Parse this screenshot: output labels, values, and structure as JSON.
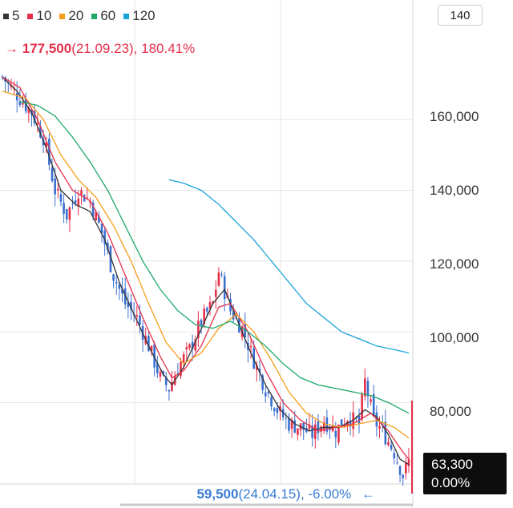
{
  "legend": [
    {
      "label": "5",
      "color": "#333333"
    },
    {
      "label": "10",
      "color": "#e5304b"
    },
    {
      "label": "20",
      "color": "#f59e1b"
    },
    {
      "label": "60",
      "color": "#1fa86a"
    },
    {
      "label": "120",
      "color": "#1aa3d9"
    }
  ],
  "period_button": "140",
  "max_marker": {
    "arrow": "→",
    "value": "177,500",
    "detail": "(21.09.23), 180.41%"
  },
  "min_marker": {
    "arrow": "←",
    "value": "59,500",
    "detail": "(24.04.15), -6.00%"
  },
  "current_price": {
    "price": "63,300",
    "change": "0.00%"
  },
  "colors": {
    "up": "#e5304b",
    "down": "#3a6fd0",
    "grid": "#e6e6e6"
  },
  "chart_data": {
    "type": "candlestick",
    "count": 140,
    "ylim": [
      57000,
      182000
    ],
    "yticks": [
      "160,000",
      "140,000",
      "120,000",
      "100,000",
      "80,000"
    ],
    "ytick_values": [
      160000,
      140000,
      120000,
      100000,
      80000
    ],
    "close_anchors": [
      [
        0,
        172000
      ],
      [
        6,
        166000
      ],
      [
        10,
        162000
      ],
      [
        14,
        155000
      ],
      [
        18,
        140000
      ],
      [
        22,
        133000
      ],
      [
        26,
        140000
      ],
      [
        30,
        137000
      ],
      [
        34,
        128000
      ],
      [
        38,
        116000
      ],
      [
        42,
        108000
      ],
      [
        46,
        104000
      ],
      [
        50,
        96000
      ],
      [
        54,
        87000
      ],
      [
        57,
        84000
      ],
      [
        60,
        90000
      ],
      [
        64,
        95000
      ],
      [
        68,
        103000
      ],
      [
        72,
        108000
      ],
      [
        74,
        117000
      ],
      [
        78,
        106000
      ],
      [
        82,
        101000
      ],
      [
        86,
        92000
      ],
      [
        90,
        84000
      ],
      [
        94,
        78000
      ],
      [
        98,
        74000
      ],
      [
        102,
        73000
      ],
      [
        106,
        71000
      ],
      [
        110,
        75000
      ],
      [
        114,
        72000
      ],
      [
        118,
        76000
      ],
      [
        122,
        74000
      ],
      [
        124,
        86000
      ],
      [
        127,
        75000
      ],
      [
        130,
        72000
      ],
      [
        134,
        66000
      ],
      [
        137,
        59500
      ],
      [
        139,
        63300
      ]
    ],
    "ma": {
      "5": [
        [
          0,
          172000
        ],
        [
          5,
          168000
        ],
        [
          10,
          162000
        ],
        [
          15,
          152000
        ],
        [
          20,
          140000
        ],
        [
          25,
          136000
        ],
        [
          30,
          134000
        ],
        [
          35,
          126000
        ],
        [
          40,
          114000
        ],
        [
          45,
          105000
        ],
        [
          50,
          96000
        ],
        [
          55,
          88000
        ],
        [
          58,
          85000
        ],
        [
          62,
          90000
        ],
        [
          67,
          99000
        ],
        [
          72,
          108000
        ],
        [
          76,
          112000
        ],
        [
          80,
          104000
        ],
        [
          85,
          94000
        ],
        [
          90,
          85000
        ],
        [
          95,
          78000
        ],
        [
          100,
          74000
        ],
        [
          105,
          72000
        ],
        [
          110,
          73000
        ],
        [
          115,
          73000
        ],
        [
          120,
          75000
        ],
        [
          124,
          78000
        ],
        [
          128,
          76000
        ],
        [
          132,
          71000
        ],
        [
          136,
          64000
        ],
        [
          139,
          62500
        ]
      ],
      "10": [
        [
          0,
          172000
        ],
        [
          6,
          169000
        ],
        [
          12,
          160000
        ],
        [
          18,
          148000
        ],
        [
          24,
          140000
        ],
        [
          30,
          137000
        ],
        [
          36,
          128000
        ],
        [
          42,
          116000
        ],
        [
          48,
          104000
        ],
        [
          54,
          93000
        ],
        [
          58,
          87000
        ],
        [
          62,
          89000
        ],
        [
          68,
          96000
        ],
        [
          74,
          107000
        ],
        [
          78,
          108000
        ],
        [
          84,
          100000
        ],
        [
          90,
          89000
        ],
        [
          96,
          80000
        ],
        [
          102,
          75000
        ],
        [
          108,
          72000
        ],
        [
          114,
          73000
        ],
        [
          120,
          74000
        ],
        [
          126,
          77000
        ],
        [
          132,
          72000
        ],
        [
          137,
          66000
        ],
        [
          139,
          64000
        ]
      ],
      "20": [
        [
          0,
          168000
        ],
        [
          8,
          166000
        ],
        [
          14,
          160000
        ],
        [
          20,
          150000
        ],
        [
          26,
          143000
        ],
        [
          32,
          138000
        ],
        [
          38,
          130000
        ],
        [
          44,
          120000
        ],
        [
          50,
          108000
        ],
        [
          56,
          97000
        ],
        [
          62,
          91000
        ],
        [
          68,
          94000
        ],
        [
          74,
          101000
        ],
        [
          80,
          105000
        ],
        [
          86,
          100000
        ],
        [
          92,
          92000
        ],
        [
          98,
          83000
        ],
        [
          104,
          77000
        ],
        [
          110,
          74000
        ],
        [
          116,
          73000
        ],
        [
          122,
          74000
        ],
        [
          128,
          75000
        ],
        [
          134,
          73000
        ],
        [
          139,
          70000
        ]
      ],
      "60": [
        [
          6,
          165000
        ],
        [
          12,
          164000
        ],
        [
          18,
          161000
        ],
        [
          24,
          155000
        ],
        [
          30,
          148000
        ],
        [
          36,
          140000
        ],
        [
          42,
          130000
        ],
        [
          48,
          120000
        ],
        [
          54,
          112000
        ],
        [
          60,
          106000
        ],
        [
          66,
          102000
        ],
        [
          72,
          101000
        ],
        [
          78,
          103000
        ],
        [
          84,
          100000
        ],
        [
          90,
          96000
        ],
        [
          96,
          91000
        ],
        [
          102,
          87000
        ],
        [
          108,
          85000
        ],
        [
          114,
          84000
        ],
        [
          120,
          83000
        ],
        [
          126,
          82000
        ],
        [
          132,
          80000
        ],
        [
          139,
          77000
        ]
      ],
      "120": [
        [
          57,
          143000
        ],
        [
          62,
          142000
        ],
        [
          68,
          140000
        ],
        [
          74,
          136000
        ],
        [
          80,
          131000
        ],
        [
          86,
          126000
        ],
        [
          92,
          120000
        ],
        [
          98,
          114000
        ],
        [
          104,
          108000
        ],
        [
          110,
          104000
        ],
        [
          116,
          100000
        ],
        [
          122,
          98000
        ],
        [
          128,
          96000
        ],
        [
          134,
          95000
        ],
        [
          139,
          94000
        ]
      ]
    }
  }
}
